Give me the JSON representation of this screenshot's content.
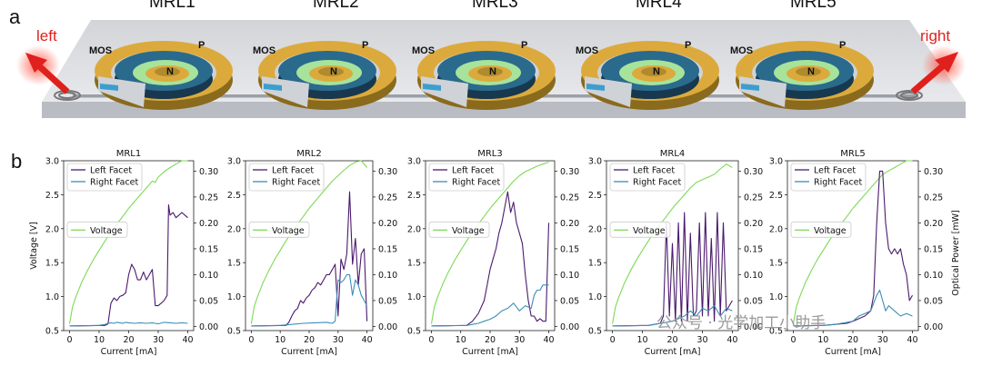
{
  "panel_a": {
    "letter": "a",
    "left_label": "left",
    "right_label": "right",
    "ring_labels": [
      "MRL1",
      "MRL2",
      "MRL3",
      "MRL4",
      "MRL5"
    ],
    "mos_label": "MOS",
    "p_label": "P",
    "n_label": "N"
  },
  "panel_b": {
    "letter": "b"
  },
  "watermark": "公众号 · 光学加工小助手",
  "colors": {
    "left": "#4b1a6e",
    "right": "#3c8db8",
    "voltage": "#7ed957",
    "arrow": "#e0201c"
  },
  "chart_data": [
    {
      "type": "line",
      "title": "MRL1",
      "xlabel": "Current [mA]",
      "ylabel": "Voltage [V]",
      "y2label": "",
      "xlim": [
        -2,
        42
      ],
      "ylim": [
        0.5,
        3.0
      ],
      "y2lim": [
        -0.008,
        0.32
      ],
      "xticks": [
        "0",
        "10",
        "20",
        "30",
        "40"
      ],
      "yticks": [
        "0.5",
        "1.0",
        "1.5",
        "2.0",
        "2.5",
        "3.0"
      ],
      "y2ticks": [
        "0.00",
        "0.05",
        "0.10",
        "0.15",
        "0.20",
        "0.25",
        "0.30"
      ],
      "legend": {
        "upper": [
          "Left Facet",
          "Right Facet"
        ],
        "voltage": "Voltage"
      },
      "series": [
        {
          "name": "Voltage",
          "axis": "left",
          "x": [
            0,
            1,
            2,
            4,
            6,
            8,
            10,
            12,
            14,
            16,
            18,
            20,
            22,
            24,
            26,
            28,
            29,
            30,
            32,
            34,
            36,
            38,
            40
          ],
          "values": [
            0.6,
            0.85,
            0.98,
            1.2,
            1.38,
            1.54,
            1.68,
            1.82,
            1.95,
            2.07,
            2.18,
            2.3,
            2.4,
            2.5,
            2.6,
            2.7,
            2.68,
            2.76,
            2.84,
            2.9,
            2.95,
            3.0,
            3.0
          ]
        },
        {
          "name": "Left Facet",
          "axis": "right",
          "x": [
            0,
            12,
            13,
            14,
            15,
            16,
            17,
            18,
            19,
            20,
            21,
            22,
            23,
            24,
            25,
            26,
            27,
            28,
            29,
            30,
            31,
            32,
            33,
            33.5,
            34,
            35,
            36,
            37,
            38,
            39,
            40
          ],
          "values": [
            0.001,
            0.002,
            0.005,
            0.045,
            0.055,
            0.05,
            0.058,
            0.06,
            0.065,
            0.1,
            0.12,
            0.11,
            0.09,
            0.09,
            0.105,
            0.09,
            0.1,
            0.11,
            0.04,
            0.04,
            0.045,
            0.05,
            0.06,
            0.235,
            0.215,
            0.22,
            0.21,
            0.215,
            0.22,
            0.215,
            0.21
          ]
        },
        {
          "name": "Right Facet",
          "axis": "right",
          "x": [
            0,
            10,
            12,
            13,
            14,
            15,
            16,
            17,
            18,
            19,
            20,
            22,
            24,
            26,
            28,
            29,
            30,
            32,
            34,
            36,
            38,
            40
          ],
          "values": [
            0.001,
            0.002,
            0.004,
            0.006,
            0.007,
            0.006,
            0.008,
            0.007,
            0.006,
            0.008,
            0.007,
            0.006,
            0.007,
            0.006,
            0.007,
            0.006,
            0.005,
            0.008,
            0.007,
            0.006,
            0.007,
            0.006
          ]
        }
      ]
    },
    {
      "type": "line",
      "title": "MRL2",
      "xlabel": "Current [mA]",
      "ylabel": "",
      "y2label": "",
      "xlim": [
        -2,
        42
      ],
      "ylim": [
        0.5,
        3.0
      ],
      "y2lim": [
        -0.008,
        0.32
      ],
      "xticks": [
        "0",
        "10",
        "20",
        "30",
        "40"
      ],
      "yticks": [
        "0.5",
        "1.0",
        "1.5",
        "2.0",
        "2.5",
        "3.0"
      ],
      "y2ticks": [
        "0.00",
        "0.05",
        "0.10",
        "0.15",
        "0.20",
        "0.25",
        "0.30"
      ],
      "legend": {
        "upper": [
          "Left Facet",
          "Right Facet"
        ],
        "voltage": "Voltage"
      },
      "series": [
        {
          "name": "Voltage",
          "axis": "left",
          "x": [
            0,
            1,
            2,
            4,
            6,
            8,
            10,
            12,
            14,
            16,
            18,
            20,
            22,
            24,
            26,
            28,
            30,
            32,
            34,
            36,
            38,
            40
          ],
          "values": [
            0.6,
            0.85,
            0.98,
            1.2,
            1.38,
            1.54,
            1.68,
            1.82,
            1.95,
            2.07,
            2.18,
            2.3,
            2.4,
            2.5,
            2.6,
            2.7,
            2.78,
            2.86,
            2.93,
            2.98,
            3.0,
            2.9
          ]
        },
        {
          "name": "Left Facet",
          "axis": "right",
          "x": [
            0,
            12,
            13,
            14,
            15,
            16,
            17,
            18,
            19,
            20,
            21,
            22,
            23,
            24,
            25,
            26,
            27,
            28,
            29,
            30,
            31,
            32,
            33,
            34,
            35,
            36,
            37,
            38,
            39,
            40
          ],
          "values": [
            0.001,
            0.002,
            0.008,
            0.02,
            0.03,
            0.035,
            0.05,
            0.045,
            0.055,
            0.06,
            0.07,
            0.075,
            0.085,
            0.08,
            0.09,
            0.1,
            0.1,
            0.11,
            0.12,
            0.02,
            0.13,
            0.11,
            0.14,
            0.26,
            0.12,
            0.17,
            0.08,
            0.14,
            0.15,
            0.01
          ]
        },
        {
          "name": "Right Facet",
          "axis": "right",
          "x": [
            0,
            10,
            14,
            18,
            22,
            26,
            28,
            29,
            30,
            31,
            32,
            33,
            34,
            35,
            36,
            37,
            38,
            39,
            40
          ],
          "values": [
            0.001,
            0.002,
            0.004,
            0.006,
            0.007,
            0.008,
            0.006,
            0.01,
            0.09,
            0.085,
            0.09,
            0.1,
            0.1,
            0.06,
            0.09,
            0.08,
            0.06,
            0.05,
            0.04
          ]
        }
      ]
    },
    {
      "type": "line",
      "title": "MRL3",
      "xlabel": "Current [mA]",
      "ylabel": "",
      "y2label": "",
      "xlim": [
        -2,
        42
      ],
      "ylim": [
        0.5,
        3.0
      ],
      "y2lim": [
        -0.008,
        0.32
      ],
      "xticks": [
        "0",
        "10",
        "20",
        "30",
        "40"
      ],
      "yticks": [
        "0.5",
        "1.0",
        "1.5",
        "2.0",
        "2.5",
        "3.0"
      ],
      "y2ticks": [
        "0.00",
        "0.05",
        "0.10",
        "0.15",
        "0.20",
        "0.25",
        "0.30"
      ],
      "legend": {
        "upper": [
          "Left Facet",
          "Right Facet"
        ],
        "voltage": "Voltage"
      },
      "series": [
        {
          "name": "Voltage",
          "axis": "left",
          "x": [
            0,
            1,
            2,
            4,
            6,
            8,
            10,
            12,
            14,
            16,
            18,
            20,
            22,
            24,
            26,
            28,
            30,
            32,
            34,
            36,
            38,
            40
          ],
          "values": [
            0.6,
            0.85,
            0.98,
            1.2,
            1.38,
            1.54,
            1.68,
            1.82,
            1.95,
            2.07,
            2.18,
            2.3,
            2.4,
            2.5,
            2.6,
            2.7,
            2.78,
            2.84,
            2.88,
            2.92,
            2.95,
            2.98
          ]
        },
        {
          "name": "Left Facet",
          "axis": "right",
          "x": [
            0,
            12,
            14,
            16,
            18,
            19,
            20,
            21,
            22,
            23,
            24,
            25,
            26,
            27,
            28,
            29,
            30,
            31,
            32,
            33,
            34,
            35,
            36,
            37,
            38,
            39,
            40
          ],
          "values": [
            0.001,
            0.002,
            0.01,
            0.025,
            0.05,
            0.08,
            0.11,
            0.13,
            0.15,
            0.18,
            0.2,
            0.23,
            0.26,
            0.22,
            0.24,
            0.2,
            0.18,
            0.16,
            0.1,
            0.05,
            0.02,
            0.02,
            0.01,
            0.015,
            0.01,
            0.01,
            0.2
          ]
        },
        {
          "name": "Right Facet",
          "axis": "right",
          "x": [
            0,
            12,
            14,
            16,
            18,
            20,
            22,
            24,
            26,
            28,
            30,
            32,
            34,
            35,
            36,
            37,
            38,
            39,
            40
          ],
          "values": [
            0.001,
            0.002,
            0.004,
            0.006,
            0.01,
            0.014,
            0.02,
            0.03,
            0.035,
            0.045,
            0.03,
            0.04,
            0.035,
            0.06,
            0.07,
            0.07,
            0.08,
            0.08,
            0.08
          ]
        }
      ]
    },
    {
      "type": "line",
      "title": "MRL4",
      "xlabel": "Current [mA]",
      "ylabel": "",
      "y2label": "",
      "xlim": [
        -2,
        42
      ],
      "ylim": [
        0.5,
        3.0
      ],
      "y2lim": [
        -0.008,
        0.32
      ],
      "xticks": [
        "0",
        "10",
        "20",
        "30",
        "40"
      ],
      "yticks": [
        "0.5",
        "1.0",
        "1.5",
        "2.0",
        "2.5",
        "3.0"
      ],
      "y2ticks": [
        "0.00",
        "0.05",
        "0.10",
        "0.15",
        "0.20",
        "0.25",
        "0.30"
      ],
      "legend": {
        "upper": [
          "Left Facet",
          "Right Facet"
        ],
        "voltage": "Voltage"
      },
      "series": [
        {
          "name": "Voltage",
          "axis": "left",
          "x": [
            0,
            1,
            2,
            4,
            6,
            8,
            10,
            12,
            14,
            16,
            18,
            20,
            22,
            24,
            26,
            28,
            30,
            32,
            34,
            36,
            38,
            40
          ],
          "values": [
            0.6,
            0.85,
            0.98,
            1.2,
            1.38,
            1.54,
            1.68,
            1.82,
            1.95,
            2.07,
            2.18,
            2.3,
            2.4,
            2.5,
            2.6,
            2.68,
            2.72,
            2.76,
            2.8,
            2.88,
            2.95,
            2.9
          ]
        },
        {
          "name": "Left Facet",
          "axis": "right",
          "x": [
            0,
            12,
            14,
            16,
            17,
            18,
            19,
            20,
            21,
            22,
            23,
            24,
            25,
            26,
            27,
            28,
            29,
            30,
            31,
            32,
            33,
            34,
            35,
            36,
            37,
            38,
            39,
            40
          ],
          "values": [
            0.001,
            0.002,
            0.004,
            0.006,
            0.02,
            0.2,
            0.02,
            0.16,
            0.01,
            0.2,
            0.01,
            0.22,
            0.01,
            0.18,
            0.02,
            0.03,
            0.2,
            0.02,
            0.22,
            0.02,
            0.17,
            0.01,
            0.22,
            0.02,
            0.2,
            0.03,
            0.04,
            0.05
          ]
        },
        {
          "name": "Right Facet",
          "axis": "right",
          "x": [
            0,
            12,
            14,
            16,
            18,
            20,
            22,
            24,
            26,
            28,
            30,
            32,
            34,
            36,
            38,
            40
          ],
          "values": [
            0.001,
            0.002,
            0.004,
            0.006,
            0.008,
            0.01,
            0.015,
            0.02,
            0.03,
            0.02,
            0.035,
            0.03,
            0.04,
            0.02,
            0.035,
            0.03
          ]
        }
      ]
    },
    {
      "type": "line",
      "title": "MRL5",
      "xlabel": "Current [mA]",
      "ylabel": "",
      "y2label": "Optical Power [mW]",
      "xlim": [
        -2,
        42
      ],
      "ylim": [
        0.5,
        3.0
      ],
      "y2lim": [
        -0.008,
        0.32
      ],
      "xticks": [
        "0",
        "10",
        "20",
        "30",
        "40"
      ],
      "yticks": [
        "0.5",
        "1.0",
        "1.5",
        "2.0",
        "2.5",
        "3.0"
      ],
      "y2ticks": [
        "0.00",
        "0.05",
        "0.10",
        "0.15",
        "0.20",
        "0.25",
        "0.30"
      ],
      "legend": {
        "upper": [
          "Left Facet",
          "Right Facet"
        ],
        "voltage": "Voltage"
      },
      "series": [
        {
          "name": "Voltage",
          "axis": "left",
          "x": [
            0,
            1,
            2,
            4,
            6,
            8,
            10,
            12,
            14,
            16,
            18,
            20,
            22,
            24,
            26,
            28,
            30,
            32,
            34,
            36,
            38,
            40
          ],
          "values": [
            0.6,
            0.85,
            0.98,
            1.2,
            1.38,
            1.54,
            1.68,
            1.82,
            1.95,
            2.07,
            2.18,
            2.3,
            2.4,
            2.5,
            2.6,
            2.7,
            2.8,
            2.85,
            2.9,
            2.95,
            3.0,
            3.0
          ]
        },
        {
          "name": "Left Facet",
          "axis": "right",
          "x": [
            0,
            10,
            14,
            18,
            20,
            22,
            24,
            26,
            27,
            28,
            29,
            30,
            31,
            32,
            33,
            34,
            35,
            36,
            37,
            38,
            39,
            40
          ],
          "values": [
            0.001,
            0.002,
            0.004,
            0.006,
            0.01,
            0.015,
            0.02,
            0.03,
            0.06,
            0.2,
            0.3,
            0.3,
            0.2,
            0.15,
            0.14,
            0.15,
            0.14,
            0.15,
            0.12,
            0.1,
            0.05,
            0.06
          ]
        },
        {
          "name": "Right Facet",
          "axis": "right",
          "x": [
            0,
            10,
            14,
            18,
            20,
            22,
            24,
            26,
            28,
            29,
            30,
            31,
            32,
            34,
            36,
            38,
            40
          ],
          "values": [
            0.001,
            0.002,
            0.004,
            0.008,
            0.01,
            0.02,
            0.025,
            0.03,
            0.06,
            0.07,
            0.05,
            0.03,
            0.04,
            0.03,
            0.02,
            0.025,
            0.02
          ]
        }
      ]
    }
  ]
}
